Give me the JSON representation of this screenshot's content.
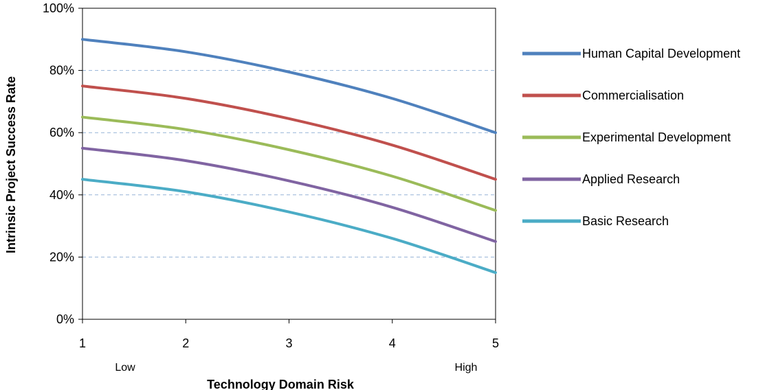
{
  "chart_data": {
    "type": "line",
    "xlabel": "Technology Domain Risk",
    "ylabel": "Intrinsic Project Success Rate",
    "x": [
      1,
      2,
      3,
      4,
      5
    ],
    "xlim": [
      1,
      5
    ],
    "ylim": [
      0,
      100
    ],
    "x_ticks": [
      "1",
      "2",
      "3",
      "4",
      "5"
    ],
    "y_ticks": [
      "0%",
      "20%",
      "40%",
      "60%",
      "80%",
      "100%"
    ],
    "x_annotations": {
      "low": "Low",
      "high": "High"
    },
    "grid": "horizontal dashed",
    "legend_position": "right",
    "series": [
      {
        "name": "Human Capital Development",
        "color": "#4F81BD",
        "values": [
          90,
          86,
          79.5,
          71,
          60
        ]
      },
      {
        "name": "Commercialisation",
        "color": "#C0504D",
        "values": [
          75,
          71,
          64.5,
          56,
          45
        ]
      },
      {
        "name": "Experimental Development",
        "color": "#9BBB59",
        "values": [
          65,
          61,
          54.5,
          46,
          35
        ]
      },
      {
        "name": "Applied Research",
        "color": "#8064A2",
        "values": [
          55,
          51,
          44.5,
          36,
          25
        ]
      },
      {
        "name": "Basic Research",
        "color": "#4BACC6",
        "values": [
          45,
          41,
          34.5,
          26,
          15
        ]
      }
    ]
  }
}
